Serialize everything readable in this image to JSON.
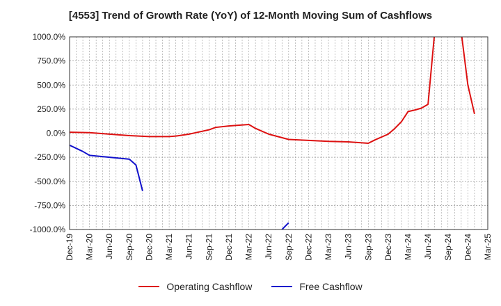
{
  "chart_data": {
    "type": "line",
    "title": "[4553]  Trend of Growth Rate (YoY) of 12-Month Moving Sum of Cashflows",
    "xlabel": "",
    "ylabel": "",
    "x_start": "2019-12",
    "x_end": "2025-03",
    "x_ticks": [
      "Dec-19",
      "Mar-20",
      "Jun-20",
      "Sep-20",
      "Dec-20",
      "Mar-21",
      "Jun-21",
      "Sep-21",
      "Dec-21",
      "Mar-22",
      "Jun-22",
      "Sep-22",
      "Dec-22",
      "Mar-23",
      "Jun-23",
      "Sep-23",
      "Dec-23",
      "Mar-24",
      "Jun-24",
      "Sep-24",
      "Dec-24",
      "Mar-25"
    ],
    "ylim": [
      -1000,
      1000
    ],
    "y_ticks": [
      1000,
      750,
      500,
      250,
      0,
      -250,
      -500,
      -750,
      -1000
    ],
    "y_tick_labels": [
      "1000.0%",
      "750.0%",
      "500.0%",
      "250.0%",
      "0.0%",
      "-250.0%",
      "-500.0%",
      "-750.0%",
      "-1000.0%"
    ],
    "grid": true,
    "legend_position": "bottom",
    "series": [
      {
        "name": "Operating Cashflow",
        "color": "#dd1111",
        "points": [
          [
            "2019-12",
            10
          ],
          [
            "2020-03",
            5
          ],
          [
            "2020-06",
            -10
          ],
          [
            "2020-09",
            -25
          ],
          [
            "2020-12",
            -35
          ],
          [
            "2021-03",
            -35
          ],
          [
            "2021-04",
            -30
          ],
          [
            "2021-06",
            -10
          ],
          [
            "2021-07",
            5
          ],
          [
            "2021-09",
            35
          ],
          [
            "2021-10",
            60
          ],
          [
            "2021-12",
            75
          ],
          [
            "2022-03",
            90
          ],
          [
            "2022-04",
            50
          ],
          [
            "2022-06",
            -10
          ],
          [
            "2022-09",
            -65
          ],
          [
            "2022-12",
            -75
          ],
          [
            "2023-03",
            -85
          ],
          [
            "2023-06",
            -90
          ],
          [
            "2023-09",
            -105
          ],
          [
            "2023-10",
            -70
          ],
          [
            "2023-12",
            -10
          ],
          [
            "2024-01",
            50
          ],
          [
            "2024-02",
            120
          ],
          [
            "2024-03",
            225
          ],
          [
            "2024-04",
            240
          ],
          [
            "2024-05",
            260
          ],
          [
            "2024-06",
            300
          ],
          [
            "2024-07",
            1050
          ],
          [
            "2024-11",
            1050
          ],
          [
            "2024-12",
            500
          ],
          [
            "2025-01",
            200
          ]
        ]
      },
      {
        "name": "Free Cashflow",
        "color": "#1111cc",
        "segments": [
          [
            [
              "2019-12",
              -125
            ],
            [
              "2020-02",
              -190
            ],
            [
              "2020-03",
              -230
            ],
            [
              "2020-06",
              -250
            ],
            [
              "2020-09",
              -270
            ],
            [
              "2020-10",
              -330
            ],
            [
              "2020-11",
              -600
            ]
          ],
          [
            [
              "2022-08",
              -1000
            ],
            [
              "2022-09",
              -930
            ]
          ]
        ]
      }
    ]
  }
}
